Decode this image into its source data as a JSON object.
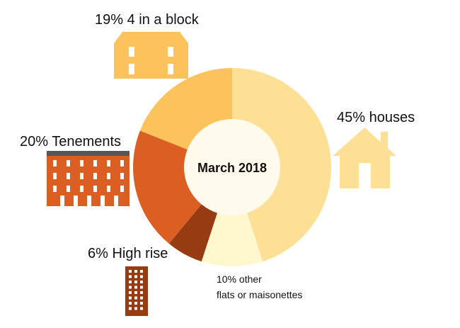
{
  "chart_data": {
    "type": "pie",
    "variant": "donut",
    "center_label": "March 2018",
    "slices": [
      {
        "key": "houses",
        "value": 45,
        "label": "45% houses",
        "color": "#FDDF95",
        "icon": "house-icon"
      },
      {
        "key": "other",
        "value": 10,
        "label_lines": [
          "10% other",
          "flats or maisonettes"
        ],
        "color": "#FFF8CE",
        "icon": ""
      },
      {
        "key": "highrise",
        "value": 6,
        "label": "6% High rise",
        "color": "#963B12",
        "icon": "high-rise-icon"
      },
      {
        "key": "tenements",
        "value": 20,
        "label": "20% Tenements",
        "color": "#DB5F23",
        "icon": "tenement-icon"
      },
      {
        "key": "block",
        "value": 19,
        "label": "19% 4 in a block",
        "color": "#FCC25C",
        "icon": "four-in-a-block-icon"
      }
    ],
    "start": "top",
    "direction": "clockwise",
    "legend": "none"
  },
  "colors": {
    "center_fill": "#FFFAEC",
    "tenement_roof": "#575757",
    "window": "#ffffff"
  }
}
